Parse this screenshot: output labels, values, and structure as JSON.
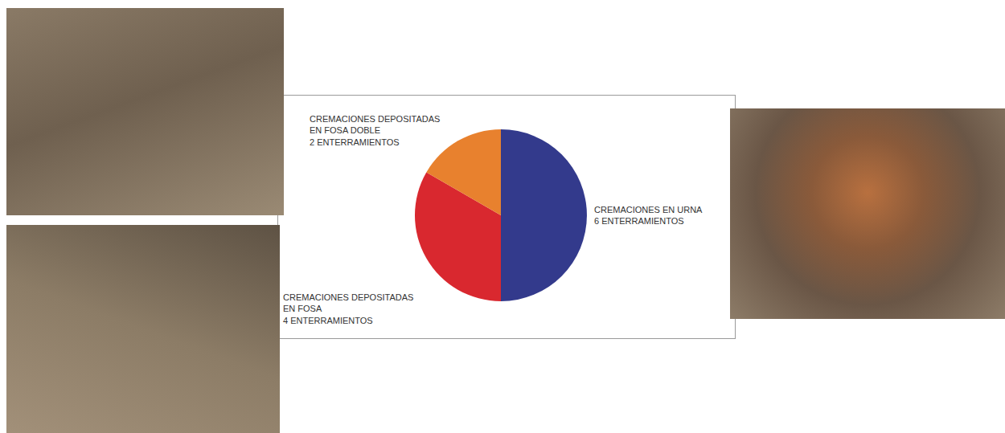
{
  "chart_data": {
    "type": "pie",
    "categories": [
      "CREMACIONES EN URNA",
      "CREMACIONES DEPOSITADAS EN FOSA",
      "CREMACIONES DEPOSITADAS EN FOSA DOBLE"
    ],
    "values": [
      6,
      4,
      2
    ],
    "value_labels": [
      "6 ENTERRAMIENTOS",
      "4 ENTERRAMIENTOS",
      "2 ENTERRAMIENTOS"
    ],
    "colors": [
      "#333a8c",
      "#d9282f",
      "#e8812e"
    ],
    "data_labels": true
  }
}
